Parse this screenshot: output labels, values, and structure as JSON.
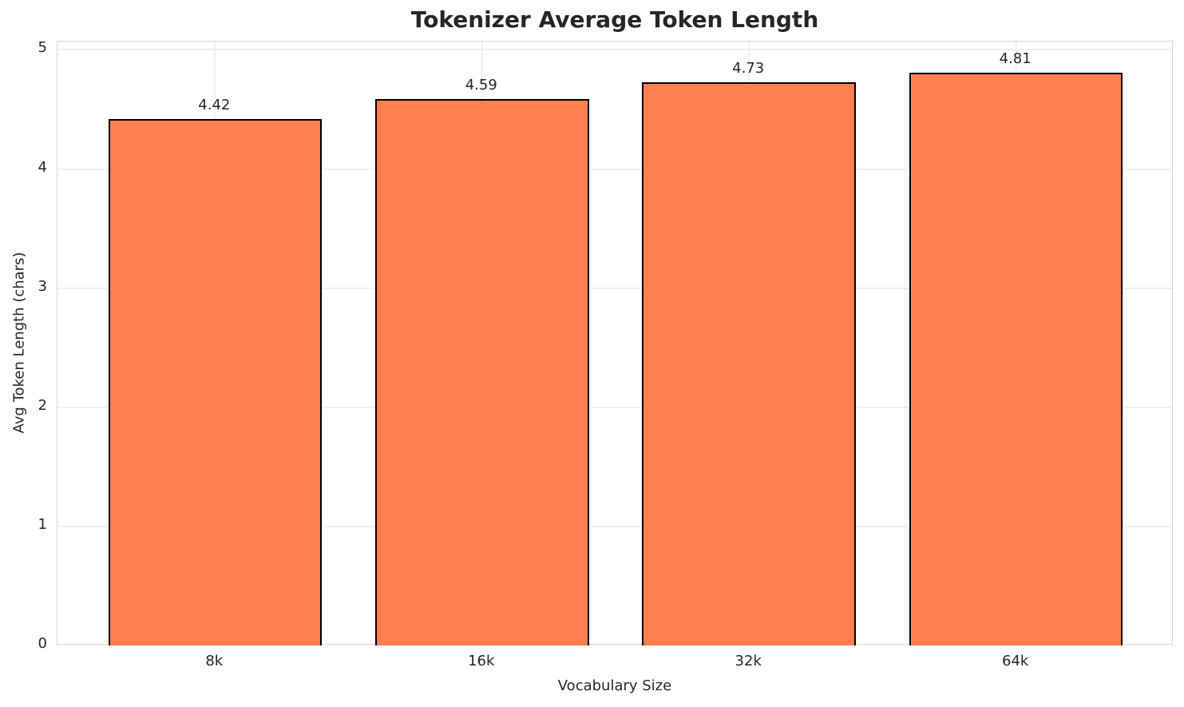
{
  "chart_data": {
    "type": "bar",
    "title": "Tokenizer Average Token Length",
    "xlabel": "Vocabulary Size",
    "ylabel": "Avg Token Length (chars)",
    "categories": [
      "8k",
      "16k",
      "32k",
      "64k"
    ],
    "values": [
      4.42,
      4.59,
      4.73,
      4.81
    ],
    "value_labels": [
      "4.42",
      "4.59",
      "4.73",
      "4.81"
    ],
    "yticks": [
      "0",
      "1",
      "2",
      "3",
      "4",
      "5"
    ],
    "ytick_values": [
      0,
      1,
      2,
      3,
      4,
      5
    ],
    "ylim": [
      0,
      5.07
    ],
    "xlim": [
      -0.59,
      3.59
    ],
    "bar_width_units": 0.8,
    "grid": true,
    "legend_position": "none",
    "colors": {
      "bar_fill": "#FF7F50",
      "bar_edge": "#000000",
      "grid_line": "#f0f0f0",
      "spine": "#d5d5d5",
      "text": "#262626",
      "background": "#ffffff"
    }
  }
}
